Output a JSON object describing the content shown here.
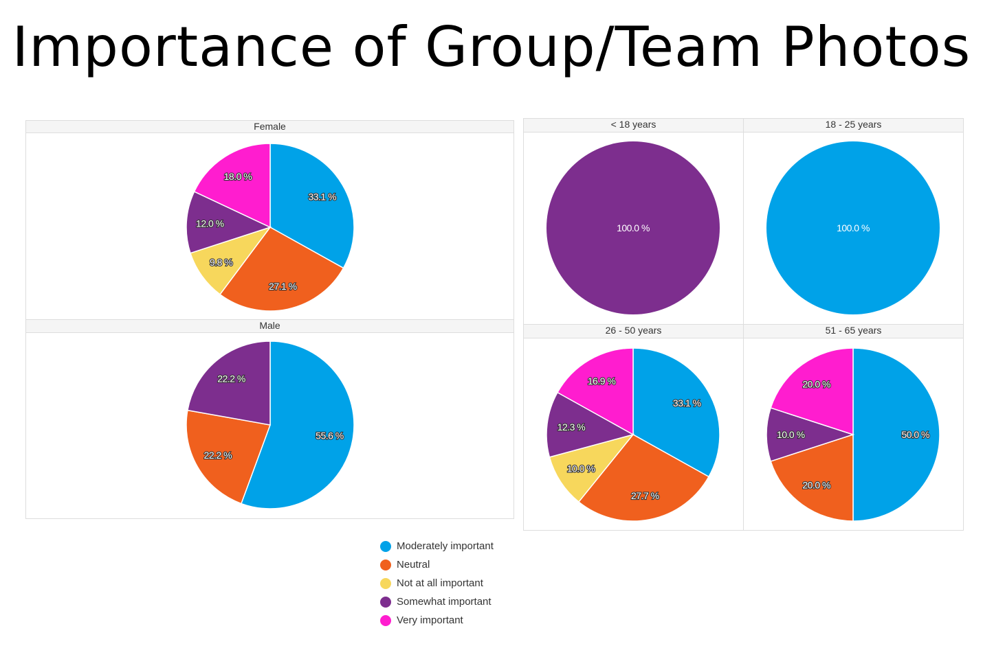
{
  "title": "Importance of Group/Team Photos",
  "colors": {
    "Moderately important": "#00a2e8",
    "Neutral": "#f0601e",
    "Not at all important": "#f7d75c",
    "Somewhat important": "#7d2e8e",
    "Very important": "#ff1dcf"
  },
  "chart_data": [
    {
      "type": "pie",
      "title": "Female",
      "categories": [
        "Moderately important",
        "Neutral",
        "Not at all important",
        "Somewhat important",
        "Very important"
      ],
      "values": [
        33.1,
        27.1,
        9.8,
        12.0,
        18.0
      ]
    },
    {
      "type": "pie",
      "title": "Male",
      "categories": [
        "Moderately important",
        "Neutral",
        "Somewhat important"
      ],
      "values": [
        55.6,
        22.2,
        22.2
      ]
    },
    {
      "type": "pie",
      "title": "< 18 years",
      "categories": [
        "Somewhat important"
      ],
      "values": [
        100.0
      ]
    },
    {
      "type": "pie",
      "title": "18 - 25 years",
      "categories": [
        "Moderately important"
      ],
      "values": [
        100.0
      ]
    },
    {
      "type": "pie",
      "title": "26 - 50 years",
      "categories": [
        "Moderately important",
        "Neutral",
        "Not at all important",
        "Somewhat important",
        "Very important"
      ],
      "values": [
        33.1,
        27.7,
        10.0,
        12.3,
        16.9
      ]
    },
    {
      "type": "pie",
      "title": "51 - 65 years",
      "categories": [
        "Moderately important",
        "Neutral",
        "Somewhat important",
        "Very important"
      ],
      "values": [
        50.0,
        20.0,
        10.0,
        20.0
      ]
    }
  ],
  "legend": [
    "Moderately important",
    "Neutral",
    "Not at all important",
    "Somewhat important",
    "Very important"
  ]
}
